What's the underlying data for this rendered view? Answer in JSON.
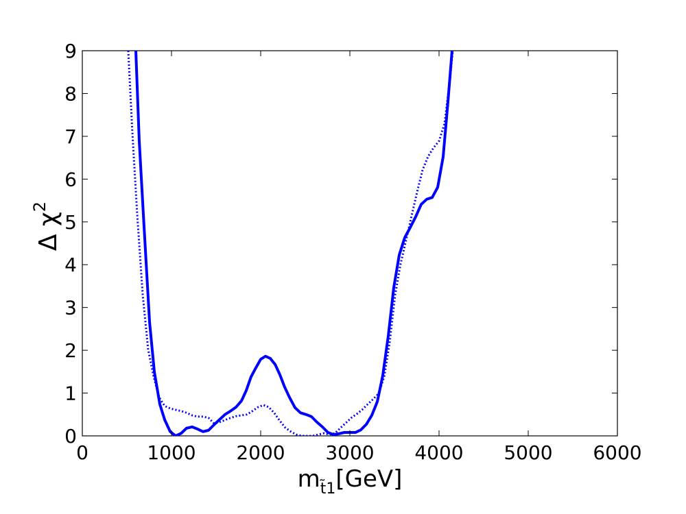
{
  "chart_data": {
    "type": "line",
    "xlabel": [
      "m",
      "t̃1",
      "[GeV]"
    ],
    "ylabel": [
      "Δ χ",
      "2"
    ],
    "xlim": [
      0,
      6000
    ],
    "xticks": [
      0,
      1000,
      2000,
      3000,
      4000,
      5000,
      6000
    ],
    "ylim": [
      0,
      9
    ],
    "yticks": [
      0,
      1,
      2,
      3,
      4,
      5,
      6,
      7,
      8,
      9
    ],
    "series": [
      {
        "color": "#0000ff",
        "style": "solid",
        "x": [
          600,
          638,
          692,
          754,
          808,
          869,
          923,
          985,
          1046,
          1108,
          1169,
          1231,
          1292,
          1354,
          1415,
          1477,
          1538,
          1600,
          1662,
          1723,
          1785,
          1838,
          1892,
          1946,
          2000,
          2054,
          2108,
          2162,
          2215,
          2269,
          2323,
          2385,
          2446,
          2508,
          2569,
          2631,
          2692,
          2754,
          2815,
          2877,
          2938,
          3000,
          3062,
          3123,
          3185,
          3246,
          3308,
          3369,
          3431,
          3492,
          3554,
          3615,
          3677,
          3738,
          3800,
          3862,
          3923,
          3985,
          4046,
          4100,
          4146
        ],
        "values": [
          9,
          6.9,
          4.9,
          2.66,
          1.49,
          0.74,
          0.38,
          0.1,
          0,
          0.06,
          0.18,
          0.21,
          0.16,
          0.1,
          0.13,
          0.26,
          0.38,
          0.5,
          0.58,
          0.67,
          0.82,
          1.06,
          1.38,
          1.59,
          1.79,
          1.86,
          1.81,
          1.67,
          1.43,
          1.14,
          0.9,
          0.66,
          0.54,
          0.5,
          0.45,
          0.32,
          0.21,
          0.08,
          0.03,
          0.05,
          0.08,
          0.08,
          0.08,
          0.14,
          0.27,
          0.48,
          0.8,
          1.41,
          2.34,
          3.46,
          4.23,
          4.63,
          4.87,
          5.12,
          5.41,
          5.53,
          5.57,
          5.81,
          6.52,
          7.81,
          9
        ]
      },
      {
        "color": "#0000ff",
        "style": "dotted",
        "x": [
          515,
          562,
          615,
          677,
          738,
          800,
          862,
          923,
          985,
          1046,
          1108,
          1169,
          1231,
          1292,
          1354,
          1415,
          1477,
          1538,
          1600,
          1662,
          1723,
          1785,
          1846,
          1908,
          1969,
          2031,
          2092,
          2154,
          2215,
          2277,
          2338,
          2400,
          2462,
          2523,
          2585,
          2646,
          2708,
          2769,
          2831,
          2892,
          2954,
          3015,
          3077,
          3138,
          3200,
          3262,
          3323,
          3385,
          3446,
          3508,
          3569,
          3631,
          3692,
          3754,
          3815,
          3877,
          3938,
          4000,
          4062,
          4123,
          4154
        ],
        "values": [
          9,
          7.06,
          5.19,
          3.3,
          2.02,
          1.38,
          0.9,
          0.7,
          0.64,
          0.61,
          0.58,
          0.54,
          0.48,
          0.45,
          0.45,
          0.42,
          0.29,
          0.32,
          0.37,
          0.42,
          0.46,
          0.48,
          0.5,
          0.58,
          0.67,
          0.72,
          0.67,
          0.53,
          0.35,
          0.19,
          0.1,
          0.03,
          0,
          0,
          0,
          0.03,
          0.06,
          0.03,
          0.06,
          0.18,
          0.3,
          0.42,
          0.51,
          0.61,
          0.74,
          0.86,
          0.99,
          1.38,
          2.18,
          3.3,
          4.02,
          4.58,
          5.14,
          5.7,
          6.21,
          6.53,
          6.73,
          6.89,
          7.3,
          8.34,
          9
        ]
      }
    ]
  }
}
